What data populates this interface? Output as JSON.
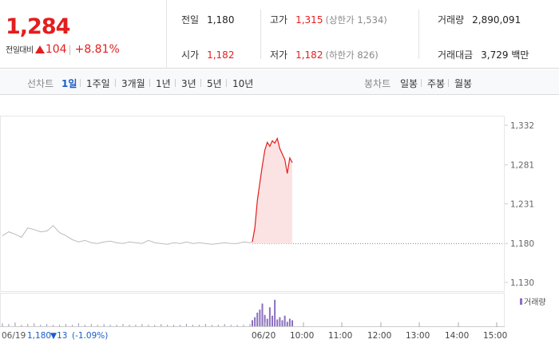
{
  "quote": {
    "price": "1,284",
    "change_label": "전일대비",
    "change_value": "104",
    "change_pct": "+8.81%"
  },
  "stats": {
    "prev_close": {
      "label": "전일",
      "value": "1,180"
    },
    "open": {
      "label": "시가",
      "value": "1,182"
    },
    "high": {
      "label": "고가",
      "value": "1,315",
      "sub": "(상한가 1,534)"
    },
    "low": {
      "label": "저가",
      "value": "1,182",
      "sub": "(하한가 826)"
    },
    "volume": {
      "label": "거래량",
      "value": "2,890,091"
    },
    "amount": {
      "label": "거래대금",
      "value": "3,729 백만"
    }
  },
  "toolbar": {
    "line_label": "선차트",
    "periods": [
      "1일",
      "1주일",
      "3개월",
      "1년",
      "3년",
      "5년",
      "10년"
    ],
    "active_period": "1일",
    "candle_label": "봉차트",
    "candles": [
      "일봉",
      "주봉",
      "월봉"
    ]
  },
  "chart_data": {
    "type": "line",
    "y_ticks": [
      "1,332",
      "1,281",
      "1,231",
      "1,180",
      "1,130"
    ],
    "ylim": [
      1130,
      1332
    ],
    "reference_line": 1180,
    "x_ticks": [
      "06/19",
      "06/20",
      "10:00",
      "11:00",
      "12:00",
      "13:00",
      "14:00",
      "15:00"
    ],
    "legend": "거래량",
    "prev_day_summary": {
      "date": "06/19",
      "close": "1,180",
      "change": "▼13",
      "change_pct": "(-1.09%)"
    },
    "series": [
      {
        "label": "06/19",
        "color": "#bbbbbb",
        "values": [
          1190,
          1195,
          1192,
          1188,
          1200,
          1198,
          1195,
          1196,
          1203,
          1194,
          1190,
          1185,
          1182,
          1184,
          1181,
          1180,
          1182,
          1183,
          1181,
          1180,
          1182,
          1181,
          1180,
          1184,
          1181,
          1180,
          1179,
          1181,
          1180,
          1182,
          1180,
          1181,
          1180,
          1179,
          1180,
          1181,
          1180,
          1180,
          1182,
          1181
        ]
      },
      {
        "label": "06/20",
        "color": "#e41d1d",
        "values": [
          1182,
          1200,
          1235,
          1258,
          1280,
          1300,
          1310,
          1305,
          1312,
          1309,
          1315,
          1302,
          1295,
          1288,
          1270,
          1290,
          1284
        ]
      }
    ],
    "volume": {
      "color": "#8b6fc0",
      "series_06_19": [
        4,
        3,
        5,
        2,
        3,
        4,
        2,
        3,
        2,
        2,
        3,
        2,
        4,
        2,
        3,
        2,
        3,
        2,
        2,
        3,
        2,
        2,
        3,
        2,
        2,
        3,
        2,
        2,
        2,
        3,
        2,
        2,
        3,
        2,
        2,
        3,
        2,
        2,
        2,
        3
      ],
      "series_06_20": [
        8,
        12,
        18,
        22,
        30,
        15,
        10,
        25,
        14,
        35,
        9,
        12,
        8,
        14,
        6,
        10,
        8
      ]
    }
  }
}
